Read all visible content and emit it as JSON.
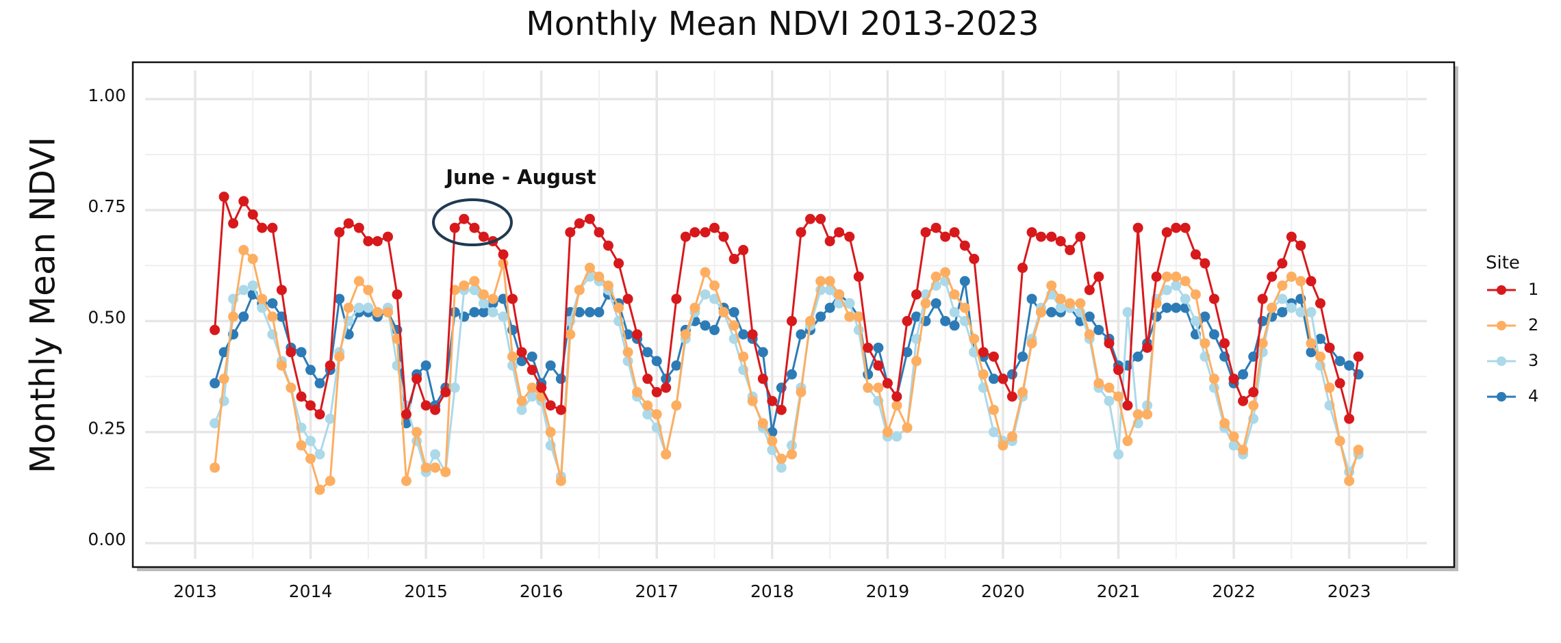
{
  "chart_data": {
    "type": "line",
    "title": "Monthly Mean NDVI 2013-2023",
    "y_label": "Monthly Mean NDVI",
    "legend_title": "Site",
    "annotation": "June - August",
    "grid": true,
    "legend_position": "right",
    "xlim": [
      2012.46,
      2023.91
    ],
    "ylim": [
      -0.054,
      1.083
    ],
    "xticks": [
      2013,
      2014,
      2015,
      2016,
      2017,
      2018,
      2019,
      2020,
      2021,
      2022,
      2023
    ],
    "yticks": [
      {
        "value": 0,
        "label": "0.00"
      },
      {
        "value": 0.25,
        "label": "0.25"
      },
      {
        "value": 0.5,
        "label": "0.50"
      },
      {
        "value": 0.75,
        "label": "0.75"
      },
      {
        "value": 1,
        "label": "1.00"
      }
    ],
    "x": [
      2013.17,
      2013.25,
      2013.33,
      2013.42,
      2013.5,
      2013.58,
      2013.67,
      2013.75,
      2013.83,
      2013.92,
      2014,
      2014.08,
      2014.17,
      2014.25,
      2014.33,
      2014.42,
      2014.5,
      2014.58,
      2014.67,
      2014.75,
      2014.83,
      2014.92,
      2015,
      2015.08,
      2015.17,
      2015.25,
      2015.33,
      2015.42,
      2015.5,
      2015.58,
      2015.67,
      2015.75,
      2015.83,
      2015.92,
      2016,
      2016.08,
      2016.17,
      2016.25,
      2016.33,
      2016.42,
      2016.5,
      2016.58,
      2016.67,
      2016.75,
      2016.83,
      2016.92,
      2017,
      2017.08,
      2017.17,
      2017.25,
      2017.33,
      2017.42,
      2017.5,
      2017.58,
      2017.67,
      2017.75,
      2017.83,
      2017.92,
      2018,
      2018.08,
      2018.17,
      2018.25,
      2018.33,
      2018.42,
      2018.5,
      2018.58,
      2018.67,
      2018.75,
      2018.83,
      2018.92,
      2019,
      2019.08,
      2019.17,
      2019.25,
      2019.33,
      2019.42,
      2019.5,
      2019.58,
      2019.67,
      2019.75,
      2019.83,
      2019.92,
      2020,
      2020.08,
      2020.17,
      2020.25,
      2020.33,
      2020.42,
      2020.5,
      2020.58,
      2020.67,
      2020.75,
      2020.83,
      2020.92,
      2021,
      2021.08,
      2021.17,
      2021.25,
      2021.33,
      2021.42,
      2021.5,
      2021.58,
      2021.67,
      2021.75,
      2021.83,
      2021.92,
      2022,
      2022.08,
      2022.17,
      2022.25,
      2022.33,
      2022.42,
      2022.5,
      2022.58,
      2022.67,
      2022.75,
      2022.83,
      2022.92,
      2023,
      2023.08
    ],
    "series": [
      {
        "name": "1",
        "color": "#d7191c",
        "values": [
          0.48,
          0.78,
          0.72,
          0.77,
          0.74,
          0.71,
          0.71,
          0.57,
          0.43,
          0.33,
          0.31,
          0.29,
          0.4,
          0.7,
          0.72,
          0.71,
          0.68,
          0.68,
          0.69,
          0.56,
          0.29,
          0.37,
          0.31,
          0.3,
          0.34,
          0.71,
          0.73,
          0.71,
          0.69,
          0.68,
          0.65,
          0.55,
          0.43,
          0.39,
          0.35,
          0.31,
          0.3,
          0.7,
          0.72,
          0.73,
          0.7,
          0.67,
          0.63,
          0.55,
          0.47,
          0.37,
          0.34,
          0.35,
          0.55,
          0.69,
          0.7,
          0.7,
          0.71,
          0.69,
          0.64,
          0.66,
          0.47,
          0.37,
          0.32,
          0.3,
          0.5,
          0.7,
          0.73,
          0.73,
          0.68,
          0.7,
          0.69,
          0.6,
          0.44,
          0.4,
          0.36,
          0.33,
          0.5,
          0.56,
          0.7,
          0.71,
          0.69,
          0.7,
          0.67,
          0.64,
          0.43,
          0.42,
          0.37,
          0.33,
          0.62,
          0.7,
          0.69,
          0.69,
          0.68,
          0.66,
          0.69,
          0.57,
          0.6,
          0.45,
          0.39,
          0.31,
          0.71,
          0.44,
          0.6,
          0.7,
          0.71,
          0.71,
          0.65,
          0.63,
          0.55,
          0.45,
          0.37,
          0.32,
          0.34,
          0.55,
          0.6,
          0.63,
          0.69,
          0.67,
          0.59,
          0.54,
          0.44,
          0.36,
          0.28,
          0.42
        ]
      },
      {
        "name": "2",
        "color": "#fdae61",
        "values": [
          0.17,
          0.37,
          0.51,
          0.66,
          0.64,
          0.55,
          0.51,
          0.4,
          0.35,
          0.22,
          0.19,
          0.12,
          0.14,
          0.42,
          0.53,
          0.59,
          0.57,
          0.52,
          0.52,
          0.46,
          0.14,
          0.25,
          0.17,
          0.17,
          0.16,
          0.57,
          0.58,
          0.59,
          0.56,
          0.55,
          0.63,
          0.42,
          0.32,
          0.35,
          0.33,
          0.25,
          0.14,
          0.47,
          0.57,
          0.62,
          0.6,
          0.58,
          0.53,
          0.43,
          0.34,
          0.31,
          0.29,
          0.2,
          0.31,
          0.47,
          0.53,
          0.61,
          0.58,
          0.52,
          0.49,
          0.42,
          0.32,
          0.27,
          0.23,
          0.19,
          0.2,
          0.34,
          0.5,
          0.59,
          0.59,
          0.56,
          0.51,
          0.51,
          0.35,
          0.35,
          0.25,
          0.31,
          0.26,
          0.41,
          0.54,
          0.6,
          0.61,
          0.56,
          0.53,
          0.46,
          0.38,
          0.3,
          0.22,
          0.24,
          0.34,
          0.45,
          0.52,
          0.58,
          0.55,
          0.54,
          0.54,
          0.47,
          0.36,
          0.35,
          0.33,
          0.23,
          0.29,
          0.29,
          0.54,
          0.6,
          0.6,
          0.59,
          0.56,
          0.45,
          0.37,
          0.27,
          0.24,
          0.21,
          0.31,
          0.45,
          0.53,
          0.58,
          0.6,
          0.59,
          0.45,
          0.42,
          0.35,
          0.23,
          0.14,
          0.21
        ]
      },
      {
        "name": "3",
        "color": "#abd9e9",
        "values": [
          0.27,
          0.32,
          0.55,
          0.57,
          0.58,
          0.53,
          0.47,
          0.41,
          0.35,
          0.26,
          0.23,
          0.2,
          0.28,
          0.43,
          0.5,
          0.53,
          0.53,
          0.52,
          0.53,
          0.4,
          0.31,
          0.23,
          0.16,
          0.2,
          0.16,
          0.35,
          0.57,
          0.57,
          0.54,
          0.52,
          0.51,
          0.4,
          0.3,
          0.33,
          0.32,
          0.22,
          0.15,
          0.5,
          0.57,
          0.6,
          0.59,
          0.57,
          0.5,
          0.41,
          0.33,
          0.29,
          0.26,
          0.2,
          0.31,
          0.46,
          0.52,
          0.56,
          0.55,
          0.52,
          0.46,
          0.39,
          0.33,
          0.26,
          0.21,
          0.17,
          0.22,
          0.35,
          0.49,
          0.57,
          0.57,
          0.54,
          0.54,
          0.48,
          0.35,
          0.32,
          0.24,
          0.24,
          0.26,
          0.46,
          0.56,
          0.58,
          0.59,
          0.52,
          0.5,
          0.43,
          0.35,
          0.25,
          0.23,
          0.23,
          0.33,
          0.46,
          0.53,
          0.56,
          0.53,
          0.53,
          0.52,
          0.46,
          0.35,
          0.32,
          0.2,
          0.52,
          0.27,
          0.31,
          0.55,
          0.57,
          0.58,
          0.55,
          0.5,
          0.42,
          0.35,
          0.26,
          0.22,
          0.2,
          0.28,
          0.43,
          0.53,
          0.55,
          0.53,
          0.52,
          0.52,
          0.4,
          0.31,
          0.23,
          0.16,
          0.2
        ]
      },
      {
        "name": "4",
        "color": "#2c7bb6",
        "values": [
          0.36,
          0.43,
          0.47,
          0.51,
          0.56,
          0.54,
          0.54,
          0.51,
          0.44,
          0.43,
          0.39,
          0.36,
          0.39,
          0.55,
          0.47,
          0.52,
          0.52,
          0.51,
          0.52,
          0.48,
          0.27,
          0.38,
          0.4,
          0.31,
          0.35,
          0.52,
          0.51,
          0.52,
          0.52,
          0.54,
          0.55,
          0.48,
          0.41,
          0.42,
          0.36,
          0.4,
          0.37,
          0.52,
          0.52,
          0.52,
          0.52,
          0.56,
          0.54,
          0.47,
          0.46,
          0.43,
          0.41,
          0.37,
          0.4,
          0.48,
          0.5,
          0.49,
          0.48,
          0.53,
          0.52,
          0.47,
          0.46,
          0.43,
          0.25,
          0.35,
          0.38,
          0.47,
          0.48,
          0.51,
          0.53,
          0.56,
          0.54,
          0.51,
          0.38,
          0.44,
          0.36,
          0.33,
          0.43,
          0.51,
          0.5,
          0.54,
          0.5,
          0.49,
          0.59,
          0.43,
          0.42,
          0.37,
          0.37,
          0.38,
          0.42,
          0.55,
          0.52,
          0.52,
          0.52,
          0.53,
          0.5,
          0.51,
          0.48,
          0.46,
          0.4,
          0.4,
          0.42,
          0.45,
          0.51,
          0.53,
          0.53,
          0.53,
          0.47,
          0.51,
          0.47,
          0.42,
          0.36,
          0.38,
          0.42,
          0.5,
          0.51,
          0.52,
          0.54,
          0.55,
          0.43,
          0.46,
          0.44,
          0.41,
          0.4,
          0.38
        ]
      }
    ]
  }
}
